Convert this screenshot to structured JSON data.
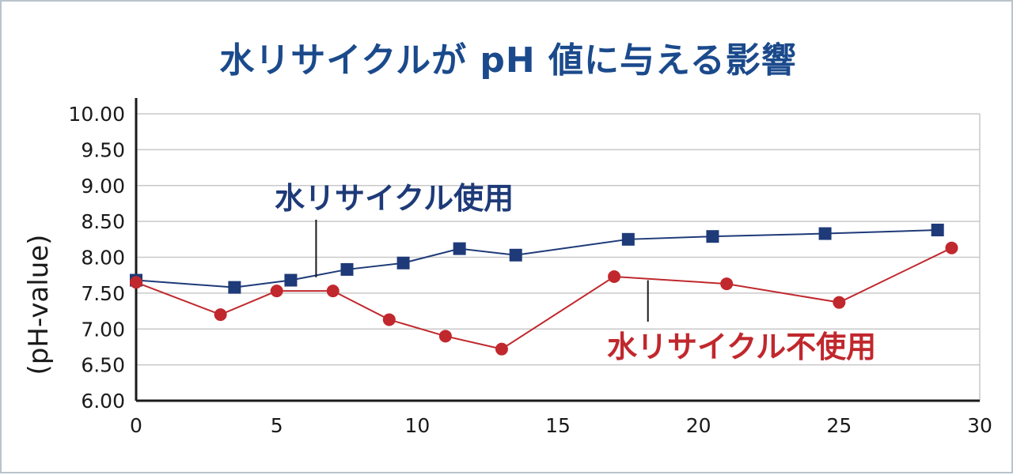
{
  "chart_data": {
    "type": "line",
    "title": "水リサイクルが pH 値に与える影響",
    "xlabel": "",
    "ylabel": "(pH-value)",
    "xlim": [
      0,
      30
    ],
    "ylim": [
      6.0,
      10.0
    ],
    "x_ticks": [
      "0",
      "5",
      "10",
      "15",
      "20",
      "25",
      "30"
    ],
    "y_ticks": [
      "6.00",
      "6.50",
      "7.00",
      "7.50",
      "8.00",
      "8.50",
      "9.00",
      "9.50",
      "10.00"
    ],
    "grid": true,
    "series": [
      {
        "name": "水リサイクル使用",
        "color": "#1e3a78",
        "marker": "square",
        "x": [
          0,
          3.5,
          5.5,
          7.5,
          9.5,
          11.5,
          13.5,
          17.5,
          20.5,
          24.5,
          28.5
        ],
        "y": [
          7.68,
          7.58,
          7.68,
          7.83,
          7.92,
          8.12,
          8.03,
          8.25,
          8.29,
          8.33,
          8.38
        ]
      },
      {
        "name": "水リサイクル不使用",
        "color": "#c0282d",
        "marker": "circle",
        "x": [
          0,
          3,
          5,
          7,
          9,
          11,
          13,
          17,
          21,
          25,
          29
        ],
        "y": [
          7.65,
          7.2,
          7.53,
          7.53,
          7.13,
          6.9,
          6.72,
          7.73,
          7.63,
          7.37,
          8.13
        ]
      }
    ]
  }
}
